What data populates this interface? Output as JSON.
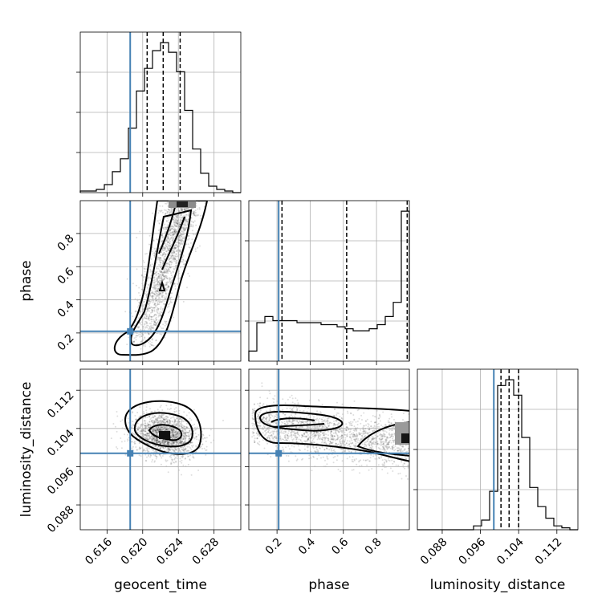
{
  "chart_data": {
    "type": "corner",
    "parameters": [
      "geocent_time",
      "phase",
      "luminosity_distance"
    ],
    "truth": {
      "geocent_time": 0.6186,
      "phase": 0.21,
      "luminosity_distance": 0.0988
    },
    "truth_color": "#4682b4",
    "ranges": {
      "geocent_time": [
        0.613,
        0.631
      ],
      "phase": [
        0.03,
        0.998
      ],
      "luminosity_distance": [
        0.0828,
        0.1164
      ]
    },
    "ticks": {
      "geocent_time": {
        "values": [
          0.616,
          0.62,
          0.624,
          0.628
        ],
        "labels": [
          "0.616",
          "0.620",
          "0.624",
          "0.628"
        ]
      },
      "phase": {
        "values": [
          0.2,
          0.4,
          0.6,
          0.8
        ],
        "labels": [
          "0.2",
          "0.4",
          "0.6",
          "0.8"
        ]
      },
      "luminosity_distance": {
        "values": [
          0.088,
          0.096,
          0.104,
          0.112
        ],
        "labels": [
          "0.088",
          "0.096",
          "0.104",
          "0.112"
        ]
      }
    },
    "quantiles": {
      "geocent_time": [
        0.6205,
        0.6223,
        0.6242
      ],
      "phase": [
        0.23,
        0.62,
        0.985
      ],
      "luminosity_distance": [
        0.1003,
        0.102,
        0.104
      ]
    },
    "histograms": {
      "geocent_time": [
        0.01,
        0.01,
        0.02,
        0.05,
        0.13,
        0.21,
        0.4,
        0.63,
        0.77,
        0.88,
        0.93,
        0.87,
        0.75,
        0.51,
        0.27,
        0.12,
        0.04,
        0.02,
        0.01,
        0.0
      ],
      "phase": [
        0.05,
        0.19,
        0.22,
        0.2,
        0.2,
        0.2,
        0.19,
        0.19,
        0.19,
        0.18,
        0.18,
        0.17,
        0.16,
        0.15,
        0.15,
        0.16,
        0.18,
        0.22,
        0.29,
        0.74
      ],
      "luminosity_distance": [
        0.0,
        0.0,
        0.0,
        0.0,
        0.0,
        0.0,
        0.0,
        0.02,
        0.05,
        0.2,
        0.75,
        0.78,
        0.7,
        0.48,
        0.22,
        0.12,
        0.06,
        0.02,
        0.01,
        0.0
      ]
    },
    "grid": true
  }
}
